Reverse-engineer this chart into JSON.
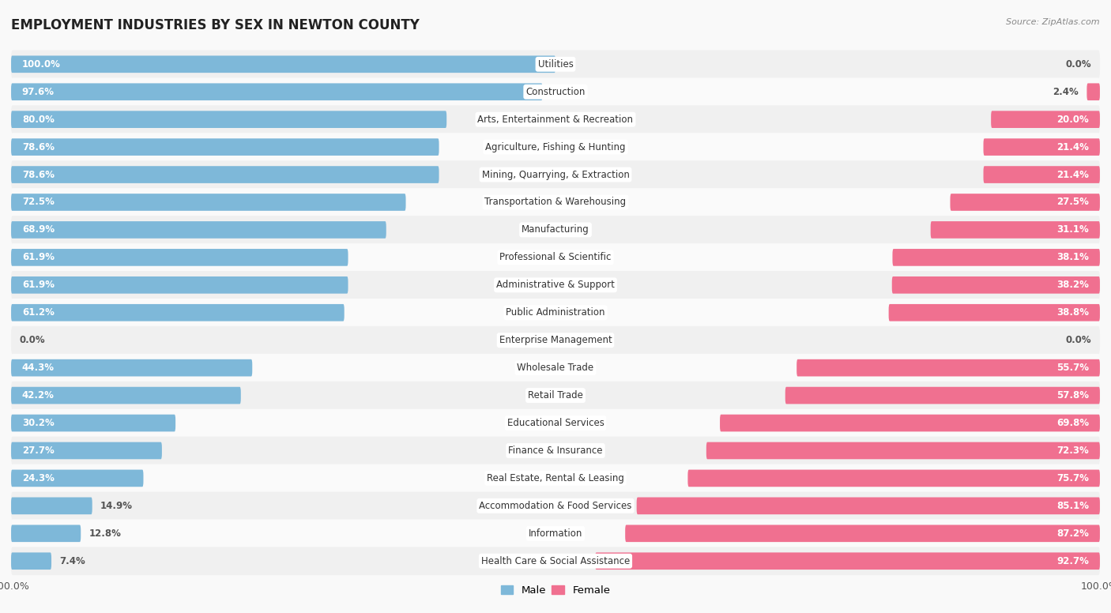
{
  "title": "EMPLOYMENT INDUSTRIES BY SEX IN NEWTON COUNTY",
  "source": "Source: ZipAtlas.com",
  "categories": [
    "Utilities",
    "Construction",
    "Arts, Entertainment & Recreation",
    "Agriculture, Fishing & Hunting",
    "Mining, Quarrying, & Extraction",
    "Transportation & Warehousing",
    "Manufacturing",
    "Professional & Scientific",
    "Administrative & Support",
    "Public Administration",
    "Enterprise Management",
    "Wholesale Trade",
    "Retail Trade",
    "Educational Services",
    "Finance & Insurance",
    "Real Estate, Rental & Leasing",
    "Accommodation & Food Services",
    "Information",
    "Health Care & Social Assistance"
  ],
  "male": [
    100.0,
    97.6,
    80.0,
    78.6,
    78.6,
    72.5,
    68.9,
    61.9,
    61.9,
    61.2,
    0.0,
    44.3,
    42.2,
    30.2,
    27.7,
    24.3,
    14.9,
    12.8,
    7.4
  ],
  "female": [
    0.0,
    2.4,
    20.0,
    21.4,
    21.4,
    27.5,
    31.1,
    38.1,
    38.2,
    38.8,
    0.0,
    55.7,
    57.8,
    69.8,
    72.3,
    75.7,
    85.1,
    87.2,
    92.7
  ],
  "male_color": "#7eb8d9",
  "female_color": "#f07090",
  "row_bg_even": "#f0f0f0",
  "row_bg_odd": "#fafafa",
  "background_color": "#f9f9f9",
  "title_fontsize": 12,
  "label_fontsize": 8.5,
  "pct_fontsize": 8.5,
  "tick_fontsize": 9
}
